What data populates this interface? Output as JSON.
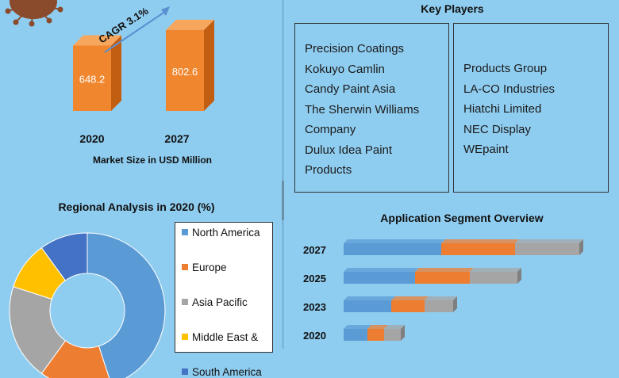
{
  "colors": {
    "background": "#8fcdf0",
    "bar_fill": "#f0862e",
    "bar_side": "#c25e12",
    "bar_top": "#f7a65e",
    "arrow": "#5b8fd1",
    "virus": "#8a4a2c"
  },
  "decor": {
    "virus_icon": "virus-icon"
  },
  "market": {
    "cagr_label": "CAGR 3.1%",
    "caption": "Market Size in USD Million"
  },
  "regional": {
    "title": "Regional Analysis in 2020 (%)"
  },
  "key_players": {
    "title": "Key Players",
    "left": [
      "Precision Coatings",
      "Kokuyo Camlin",
      "Candy Paint Asia",
      "The Sherwin Williams",
      "Company",
      "Dulux Idea Paint",
      "Products"
    ],
    "right": [
      "Products Group",
      "LA-CO Industries",
      "Hiatchi Limited",
      "NEC Display",
      "WEpaint"
    ]
  },
  "application": {
    "title": "Application Segment Overview"
  },
  "chart_data": [
    {
      "type": "bar",
      "categories": [
        "2020",
        "2027"
      ],
      "values": [
        648.2,
        802.6
      ],
      "title": "",
      "xlabel": "Market Size in USD Million",
      "ylabel": "",
      "ylim": [
        0,
        1100
      ],
      "annotation": "CAGR 3.1%",
      "grid": false
    },
    {
      "type": "pie",
      "title": "Regional Analysis in 2020 (%)",
      "donut": true,
      "labels": [
        "North America",
        "Europe",
        "Asia Pacific",
        "Middle East &",
        "South America"
      ],
      "values": [
        45,
        15,
        20,
        10,
        10
      ],
      "colors": [
        "#5b9bd5",
        "#ed7d31",
        "#a5a5a5",
        "#ffc000",
        "#4472c4"
      ],
      "legend": "right"
    },
    {
      "type": "bar",
      "orientation": "horizontal",
      "stacked": true,
      "title": "Application Segment Overview",
      "categories": [
        "2027",
        "2025",
        "2023",
        "2020"
      ],
      "series": [
        {
          "values": [
            41,
            30,
            20,
            10
          ]
        },
        {
          "values": [
            31,
            23,
            14,
            7
          ]
        },
        {
          "values": [
            27,
            20,
            12,
            7
          ]
        }
      ],
      "colors": [
        "#5b9bd5",
        "#ed7d31",
        "#a5a5a5"
      ],
      "xlim": [
        0,
        100
      ],
      "grid": false
    }
  ]
}
